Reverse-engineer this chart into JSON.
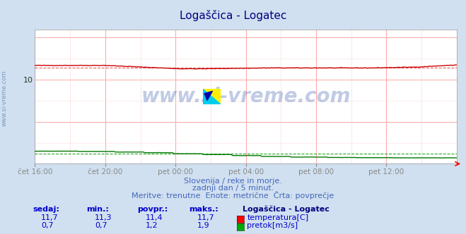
{
  "title": "Logaščica - Logatec",
  "title_color": "#000080",
  "bg_color": "#d0e0f0",
  "plot_bg_color": "#ffffff",
  "x_labels": [
    "čet 16:00",
    "čet 20:00",
    "pet 00:00",
    "pet 04:00",
    "pet 08:00",
    "pet 12:00"
  ],
  "x_ticks": [
    0,
    48,
    96,
    144,
    192,
    240
  ],
  "x_max": 288,
  "y_min": 0,
  "y_max": 16,
  "temp_color": "#cc0000",
  "temp_avg_color": "#dd4444",
  "flow_color": "#007700",
  "flow_avg_color": "#009900",
  "height_color": "#0000bb",
  "watermark": "www.si-vreme.com",
  "watermark_color": "#3355aa",
  "watermark_alpha": 0.3,
  "footer_line1": "Slovenija / reke in morje.",
  "footer_line2": "zadnji dan / 5 minut.",
  "footer_line3": "Meritve: trenutne  Enote: metrične  Črta: povprečje",
  "footer_color": "#4466bb",
  "legend_title": "Logaščica - Logatec",
  "legend_color": "#000080",
  "table_headers": [
    "sedaj:",
    "min.:",
    "povpr.:",
    "maks.:"
  ],
  "table_color": "#0000cc",
  "temp_row": [
    "11,7",
    "11,3",
    "11,4",
    "11,7"
  ],
  "flow_row": [
    "0,7",
    "0,7",
    "1,2",
    "1,9"
  ],
  "temp_label": "temperatura[C]",
  "flow_label": "pretok[m3/s]",
  "temp_avg": 11.4,
  "flow_avg": 1.2,
  "side_label": "www.si-vreme.com",
  "side_label_color": "#4466aa"
}
